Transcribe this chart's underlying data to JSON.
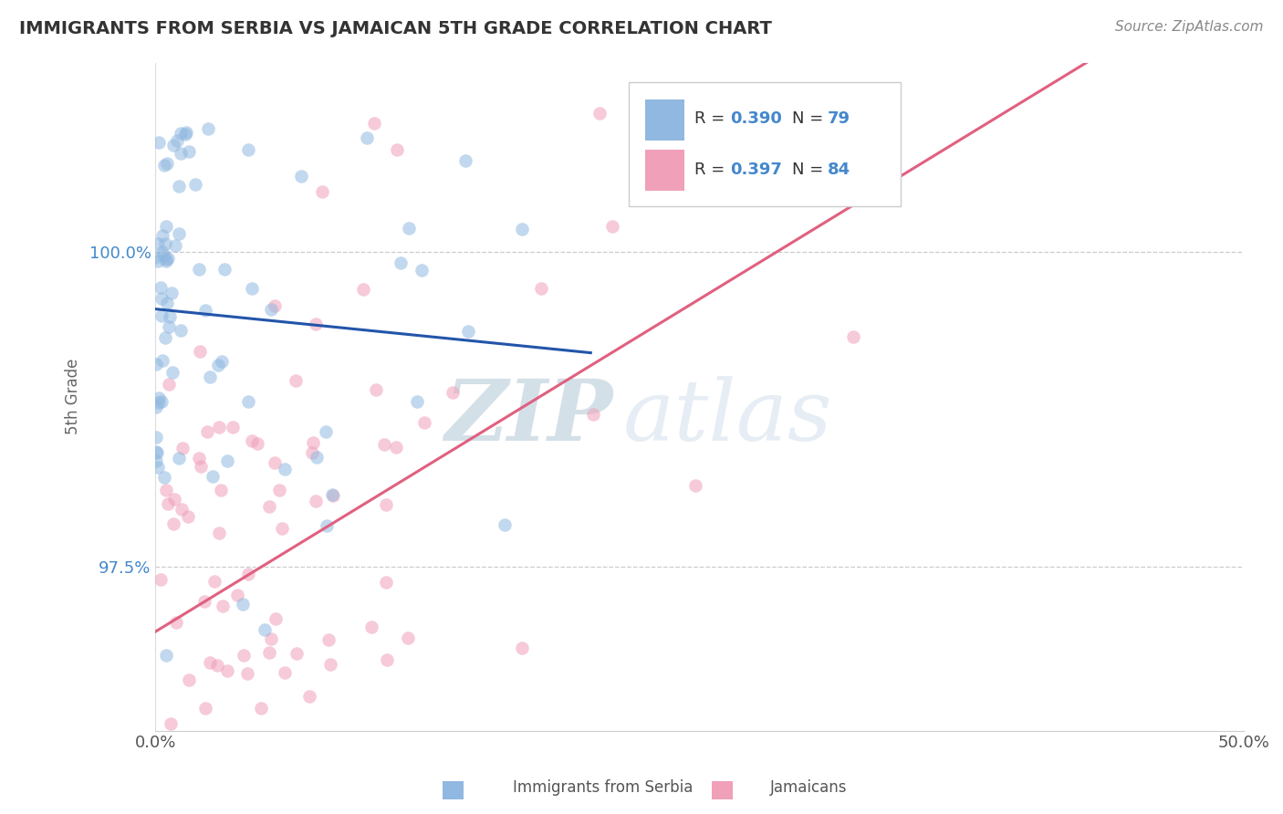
{
  "title": "IMMIGRANTS FROM SERBIA VS JAMAICAN 5TH GRADE CORRELATION CHART",
  "source_text": "Source: ZipAtlas.com",
  "ylabel": "5th Grade",
  "xlim": [
    0.0,
    0.5
  ],
  "ylim": [
    96.2,
    101.5
  ],
  "xtick_positions": [
    0.0,
    0.5
  ],
  "xtick_labels": [
    "0.0%",
    "50.0%"
  ],
  "ytick_values": [
    97.5,
    100.0
  ],
  "ytick_labels": [
    "97.5%",
    "100.0%"
  ],
  "grid_ytick_values": [
    97.5,
    100.0
  ],
  "serbia_color": "#90b8e0",
  "serbia_line_color": "#2255aa",
  "jamaica_color": "#f0a0b8",
  "jamaica_line_color": "#e06080",
  "dot_size": 110,
  "dot_alpha": 0.55,
  "grid_color": "#cccccc",
  "background_color": "#ffffff",
  "title_color": "#333333",
  "source_color": "#888888",
  "R_value_color": "#4488cc",
  "watermark_zip_color": "#c8d8e8",
  "watermark_atlas_color": "#a8c8d8"
}
